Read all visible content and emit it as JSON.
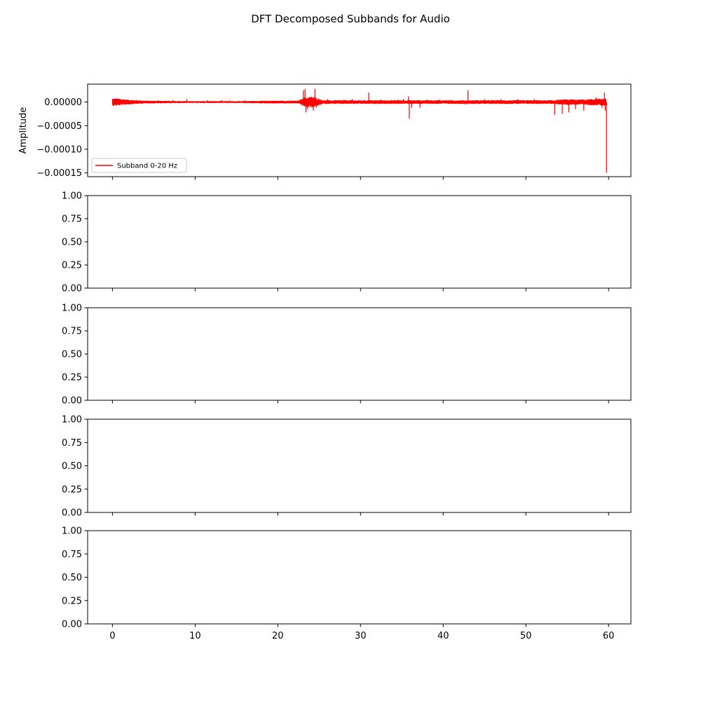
{
  "figure": {
    "suptitle": "DFT Decomposed Subbands for Audio"
  },
  "chart_data": [
    {
      "type": "line",
      "panel": 1,
      "ylabel": "Amplitude",
      "xlabel": "",
      "xlim": [
        -3,
        62.7
      ],
      "ylim": [
        -0.000158,
        3.8e-05
      ],
      "xticks": [
        0,
        10,
        20,
        30,
        40,
        50,
        60
      ],
      "xtick_labels": [
        "0",
        "10",
        "20",
        "30",
        "40",
        "50",
        "60"
      ],
      "show_xtick_labels": false,
      "yticks": [
        0.0,
        -5e-05,
        -0.0001,
        -0.00015
      ],
      "ytick_labels": [
        "0.00000",
        "−0.00005",
        "−0.00010",
        "−0.00015"
      ],
      "grid": false,
      "legend": {
        "location": "lower-left",
        "entries": [
          "Subband 0-20 Hz"
        ]
      },
      "series": [
        {
          "name": "Subband 0-20 Hz",
          "color": "#ff0000",
          "duration": 59.7,
          "envelope": [
            [
              0.0,
              8e-06
            ],
            [
              0.5,
              8e-06
            ],
            [
              2.0,
              5e-06
            ],
            [
              4.0,
              3e-06
            ],
            [
              9.0,
              2e-06
            ],
            [
              15.0,
              2e-06
            ],
            [
              19.0,
              3e-06
            ],
            [
              22.5,
              3e-06
            ],
            [
              23.2,
              1e-05
            ],
            [
              24.2,
              1.2e-05
            ],
            [
              25.5,
              4e-06
            ],
            [
              30.0,
              4e-06
            ],
            [
              35.5,
              4e-06
            ],
            [
              36.5,
              4e-06
            ],
            [
              42.0,
              4e-06
            ],
            [
              50.0,
              4e-06
            ],
            [
              53.0,
              4e-06
            ],
            [
              55.0,
              6e-06
            ],
            [
              57.0,
              6e-06
            ],
            [
              59.5,
              8e-06
            ],
            [
              59.7,
              8e-06
            ]
          ],
          "spikes": [
            [
              3.0,
              4e-06
            ],
            [
              5.5,
              4e-06
            ],
            [
              7.3,
              4e-06
            ],
            [
              9.0,
              6e-06
            ],
            [
              11.5,
              4e-06
            ],
            [
              13.2,
              4e-06
            ],
            [
              14.2,
              4e-06
            ],
            [
              16.0,
              4e-06
            ],
            [
              19.4,
              -3e-06
            ],
            [
              22.0,
              3e-06
            ],
            [
              23.1,
              2.5e-05
            ],
            [
              23.3,
              2.8e-05
            ],
            [
              23.4,
              -2.2e-05
            ],
            [
              23.6,
              -1.5e-05
            ],
            [
              24.3,
              -1.8e-05
            ],
            [
              24.5,
              2.8e-05
            ],
            [
              24.7,
              -1.2e-05
            ],
            [
              26.0,
              6e-06
            ],
            [
              28.0,
              5e-06
            ],
            [
              29.0,
              6e-06
            ],
            [
              31.0,
              2e-05
            ],
            [
              32.5,
              5e-06
            ],
            [
              34.5,
              5e-06
            ],
            [
              35.2,
              6e-06
            ],
            [
              35.8,
              1.2e-05
            ],
            [
              35.9,
              -3.5e-05
            ],
            [
              36.2,
              -1.2e-05
            ],
            [
              37.2,
              -1.2e-05
            ],
            [
              38.0,
              5e-06
            ],
            [
              39.5,
              5e-06
            ],
            [
              42.7,
              -5e-06
            ],
            [
              43.0,
              2.5e-05
            ],
            [
              45.0,
              6e-06
            ],
            [
              47.0,
              6e-06
            ],
            [
              49.0,
              6e-06
            ],
            [
              51.0,
              6e-06
            ],
            [
              53.5,
              -2.7e-05
            ],
            [
              54.4,
              -2.5e-05
            ],
            [
              55.2,
              -2.2e-05
            ],
            [
              56.0,
              -1.5e-05
            ],
            [
              57.0,
              -1.8e-05
            ],
            [
              58.5,
              1e-05
            ],
            [
              59.2,
              -1.2e-05
            ],
            [
              59.5,
              2e-05
            ],
            [
              59.6,
              -1.8e-05
            ],
            [
              59.75,
              -0.00015
            ]
          ]
        }
      ]
    },
    {
      "type": "line",
      "panel": 2,
      "xlim": [
        -3,
        62.7
      ],
      "ylim": [
        0,
        1
      ],
      "xticks": [
        0,
        10,
        20,
        30,
        40,
        50,
        60
      ],
      "xtick_labels": [
        "0",
        "10",
        "20",
        "30",
        "40",
        "50",
        "60"
      ],
      "show_xtick_labels": false,
      "yticks": [
        0,
        0.25,
        0.5,
        0.75,
        1.0
      ],
      "ytick_labels": [
        "0.00",
        "0.25",
        "0.50",
        "0.75",
        "1.00"
      ],
      "grid": false,
      "series": []
    },
    {
      "type": "line",
      "panel": 3,
      "xlim": [
        -3,
        62.7
      ],
      "ylim": [
        0,
        1
      ],
      "xticks": [
        0,
        10,
        20,
        30,
        40,
        50,
        60
      ],
      "xtick_labels": [
        "0",
        "10",
        "20",
        "30",
        "40",
        "50",
        "60"
      ],
      "show_xtick_labels": false,
      "yticks": [
        0,
        0.25,
        0.5,
        0.75,
        1.0
      ],
      "ytick_labels": [
        "0.00",
        "0.25",
        "0.50",
        "0.75",
        "1.00"
      ],
      "grid": false,
      "series": []
    },
    {
      "type": "line",
      "panel": 4,
      "xlim": [
        -3,
        62.7
      ],
      "ylim": [
        0,
        1
      ],
      "xticks": [
        0,
        10,
        20,
        30,
        40,
        50,
        60
      ],
      "xtick_labels": [
        "0",
        "10",
        "20",
        "30",
        "40",
        "50",
        "60"
      ],
      "show_xtick_labels": false,
      "yticks": [
        0,
        0.25,
        0.5,
        0.75,
        1.0
      ],
      "ytick_labels": [
        "0.00",
        "0.25",
        "0.50",
        "0.75",
        "1.00"
      ],
      "grid": false,
      "series": []
    },
    {
      "type": "line",
      "panel": 5,
      "xlim": [
        -3,
        62.7
      ],
      "ylim": [
        0,
        1
      ],
      "xticks": [
        0,
        10,
        20,
        30,
        40,
        50,
        60
      ],
      "xtick_labels": [
        "0",
        "10",
        "20",
        "30",
        "40",
        "50",
        "60"
      ],
      "show_xtick_labels": true,
      "yticks": [
        0,
        0.25,
        0.5,
        0.75,
        1.0
      ],
      "ytick_labels": [
        "0.00",
        "0.25",
        "0.50",
        "0.75",
        "1.00"
      ],
      "grid": false,
      "series": []
    }
  ]
}
